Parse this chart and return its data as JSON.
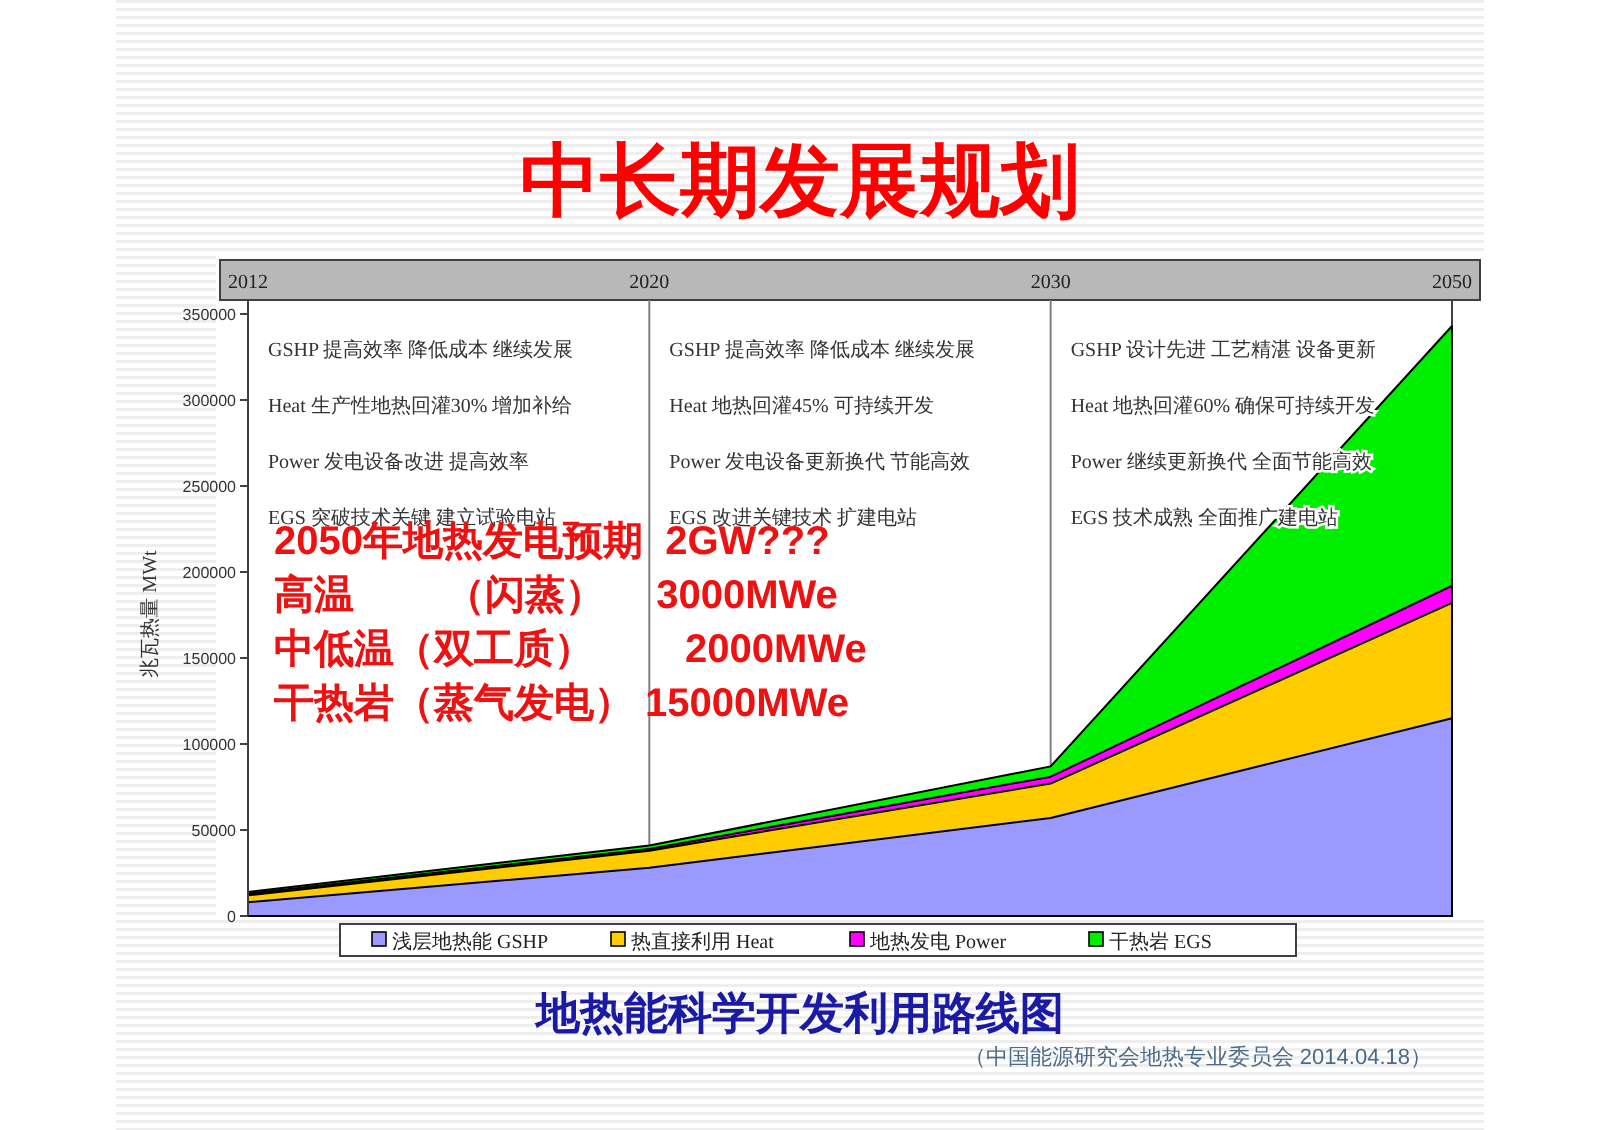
{
  "chart_data": {
    "type": "area",
    "title": "中长期发展规划",
    "ylabel": "兆瓦热量 MWt",
    "categories": [
      "2012",
      "2020",
      "2030",
      "2050"
    ],
    "stacked": true,
    "ylim": [
      0,
      350000
    ],
    "yticks": [
      0,
      50000,
      100000,
      150000,
      200000,
      250000,
      300000,
      350000
    ],
    "legend": "bottom",
    "series": [
      {
        "name": "浅层地热能 GSHP",
        "color": "#9999ff",
        "values": [
          8000,
          28000,
          57000,
          115000
        ]
      },
      {
        "name": "热直接利用 Heat",
        "color": "#ffcc00",
        "values": [
          4000,
          10000,
          20000,
          67000
        ]
      },
      {
        "name": "地热发电 Power",
        "color": "#ff00ff",
        "values": [
          1000,
          1000,
          4000,
          10000
        ]
      },
      {
        "name": "干热岩 EGS",
        "color": "#00ee00",
        "values": [
          1000,
          2000,
          6000,
          151000
        ]
      }
    ],
    "ref_lines": [
      {
        "axis": "x",
        "value": "2020",
        "color": "#808080"
      },
      {
        "axis": "x",
        "value": "2030",
        "color": "#808080"
      }
    ],
    "annotations": [
      "GSHP 提高效率 降低成本 继续发展",
      "Heat 生产性地热回灌30% 增加补给",
      "Power 发电设备改进 提高效率",
      "EGS 突破技术关键 建立试验电站",
      "GSHP 提高效率 降低成本 继续发展",
      "Heat 地热回灌45% 可持续开发",
      "Power 发电设备更新换代 节能高效",
      "EGS 改进关键技术 扩建电站",
      "GSHP 设计先进 工艺精湛 设备更新",
      "Heat 地热回灌60% 确保可持续开发",
      "Power 继续更新换代 全面节能高效",
      "EGS 技术成熟 全面推广建电站",
      "2050年地热发电预期  2GW???",
      "高温　　 （闪蒸）　 3000MWe",
      "中低温（双工质）　　 2000MWe",
      "干热岩（蒸气发电） 15000MWe",
      "地热能科学开发利用路线图",
      "（中国能源研究会地热专业委员会 2014.04.18）"
    ]
  }
}
